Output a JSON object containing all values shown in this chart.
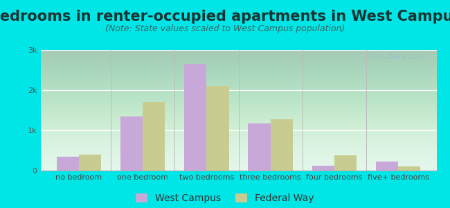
{
  "title": "Bedrooms in renter-occupied apartments in West Campus",
  "subtitle": "(Note: State values scaled to West Campus population)",
  "categories": [
    "no bedroom",
    "one bedroom",
    "two bedrooms",
    "three bedrooms",
    "four bedrooms",
    "five+ bedrooms"
  ],
  "west_campus": [
    350,
    1350,
    2650,
    1175,
    125,
    225
  ],
  "federal_way": [
    400,
    1700,
    2100,
    1275,
    375,
    100
  ],
  "west_campus_color": "#c8a8d8",
  "federal_way_color": "#c8cc90",
  "background_color": "#00e5e5",
  "yticks": [
    0,
    1000,
    2000,
    3000
  ],
  "ylabels": [
    "0",
    "1k",
    "2k",
    "3k"
  ],
  "ylim": [
    0,
    3000
  ],
  "title_fontsize": 15,
  "subtitle_fontsize": 9,
  "tick_fontsize": 8,
  "legend_fontsize": 10,
  "bar_width": 0.35,
  "watermark": "City-Data.com"
}
